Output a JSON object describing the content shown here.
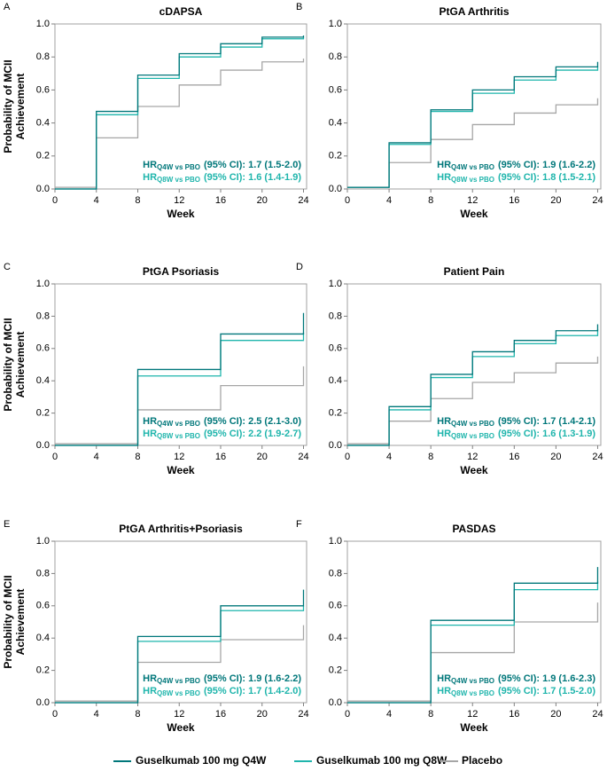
{
  "chart_data": [
    {
      "type": "step",
      "panel": "A",
      "title": "cDAPSA",
      "xlabel": "Week",
      "ylabel": [
        "Probability of MCII",
        "Achievement"
      ],
      "x": [
        0,
        4,
        8,
        12,
        16,
        20,
        24
      ],
      "series": [
        {
          "name": "Guselkumab 100 mg Q4W",
          "color": "#00777a",
          "values": [
            0,
            0.47,
            0.69,
            0.82,
            0.88,
            0.92,
            0.93
          ]
        },
        {
          "name": "Guselkumab 100 mg Q8W",
          "color": "#1fb5ac",
          "values": [
            0,
            0.45,
            0.67,
            0.8,
            0.86,
            0.91,
            0.92
          ]
        },
        {
          "name": "Placebo",
          "color": "#a6a6a6",
          "values": [
            0.01,
            0.31,
            0.5,
            0.63,
            0.72,
            0.77,
            0.79
          ]
        }
      ],
      "xlim": [
        0,
        24.3
      ],
      "ylim": [
        0,
        1
      ],
      "xticks": [
        0,
        4,
        8,
        12,
        16,
        20,
        24
      ],
      "yticks": [
        {
          "value": 0,
          "label": "0.0"
        },
        0.2,
        0.4,
        0.6,
        0.8,
        {
          "value": 1,
          "label": "1.0"
        }
      ],
      "annotations": [
        {
          "prefix": "HR",
          "sub": "Q4W vs PBO",
          "text": "(95% CI): 1.7 (1.5-2.0)",
          "color": "#00777a"
        },
        {
          "prefix": "HR",
          "sub": "Q8W vs PBO",
          "text": "(95% CI): 1.6 (1.4-1.9)",
          "color": "#1fb5ac"
        }
      ]
    },
    {
      "type": "step",
      "panel": "B",
      "title": "PtGA Arthritis",
      "xlabel": "Week",
      "x": [
        0,
        4,
        8,
        12,
        16,
        20,
        24
      ],
      "series": [
        {
          "name": "Guselkumab 100 mg Q4W",
          "color": "#00777a",
          "values": [
            0.01,
            0.28,
            0.48,
            0.6,
            0.68,
            0.74,
            0.77
          ]
        },
        {
          "name": "Guselkumab 100 mg Q8W",
          "color": "#1fb5ac",
          "values": [
            0.01,
            0.27,
            0.47,
            0.58,
            0.66,
            0.72,
            0.74
          ]
        },
        {
          "name": "Placebo",
          "color": "#a6a6a6",
          "values": [
            0.01,
            0.16,
            0.3,
            0.39,
            0.46,
            0.51,
            0.55
          ]
        }
      ],
      "xlim": [
        0,
        24.3
      ],
      "ylim": [
        0,
        1
      ],
      "xticks": [
        0,
        4,
        8,
        12,
        16,
        20,
        24
      ],
      "yticks": [
        {
          "value": 0,
          "label": "0.0"
        },
        0.2,
        0.4,
        0.6,
        0.8,
        {
          "value": 1,
          "label": "1.0"
        }
      ],
      "annotations": [
        {
          "prefix": "HR",
          "sub": "Q4W vs PBO",
          "text": "(95% CI): 1.9 (1.6-2.2)",
          "color": "#00777a"
        },
        {
          "prefix": "HR",
          "sub": "Q8W vs PBO",
          "text": "(95% CI): 1.8 (1.5-2.1)",
          "color": "#1fb5ac"
        }
      ]
    },
    {
      "type": "step",
      "panel": "C",
      "title": "PtGA Psoriasis",
      "xlabel": "Week",
      "ylabel": [
        "Probability of MCII",
        "Achievement"
      ],
      "x": [
        0,
        8,
        16,
        24
      ],
      "series": [
        {
          "name": "Guselkumab 100 mg Q4W",
          "color": "#00777a",
          "values": [
            0,
            0.47,
            0.69,
            0.82
          ]
        },
        {
          "name": "Guselkumab 100 mg Q8W",
          "color": "#1fb5ac",
          "values": [
            0,
            0.43,
            0.65,
            0.7
          ]
        },
        {
          "name": "Placebo",
          "color": "#a6a6a6",
          "values": [
            0.01,
            0.22,
            0.37,
            0.49
          ]
        }
      ],
      "xlim": [
        0,
        24.3
      ],
      "ylim": [
        0,
        1
      ],
      "xticks": [
        0,
        4,
        8,
        12,
        16,
        20,
        24
      ],
      "yticks": [
        {
          "value": 0,
          "label": "0.0"
        },
        0.2,
        0.4,
        0.6,
        0.8,
        {
          "value": 1,
          "label": "1.0"
        }
      ],
      "annotations": [
        {
          "prefix": "HR",
          "sub": "Q4W vs PBO",
          "text": "(95% CI): 2.5 (2.1-3.0)",
          "color": "#00777a"
        },
        {
          "prefix": "HR",
          "sub": "Q8W vs PBO",
          "text": "(95% CI): 2.2 (1.9-2.7)",
          "color": "#1fb5ac"
        }
      ]
    },
    {
      "type": "step",
      "panel": "D",
      "title": "Patient Pain",
      "xlabel": "Week",
      "x": [
        0,
        4,
        8,
        12,
        16,
        20,
        24
      ],
      "series": [
        {
          "name": "Guselkumab 100 mg Q4W",
          "color": "#00777a",
          "values": [
            0,
            0.24,
            0.44,
            0.58,
            0.65,
            0.71,
            0.75
          ]
        },
        {
          "name": "Guselkumab 100 mg Q8W",
          "color": "#1fb5ac",
          "values": [
            0,
            0.22,
            0.42,
            0.55,
            0.63,
            0.68,
            0.72
          ]
        },
        {
          "name": "Placebo",
          "color": "#a6a6a6",
          "values": [
            0.01,
            0.15,
            0.29,
            0.39,
            0.45,
            0.51,
            0.55
          ]
        }
      ],
      "xlim": [
        0,
        24.3
      ],
      "ylim": [
        0,
        1
      ],
      "xticks": [
        0,
        4,
        8,
        12,
        16,
        20,
        24
      ],
      "yticks": [
        {
          "value": 0,
          "label": "0.0"
        },
        0.2,
        0.4,
        0.6,
        0.8,
        {
          "value": 1,
          "label": "1.0"
        }
      ],
      "annotations": [
        {
          "prefix": "HR",
          "sub": "Q4W vs PBO",
          "text": "(95% CI): 1.7 (1.4-2.1)",
          "color": "#00777a"
        },
        {
          "prefix": "HR",
          "sub": "Q8W vs PBO",
          "text": "(95% CI): 1.6 (1.3-1.9)",
          "color": "#1fb5ac"
        }
      ]
    },
    {
      "type": "step",
      "panel": "E",
      "title": "PtGA Arthritis+Psoriasis",
      "xlabel": "Week",
      "ylabel": [
        "Probability of MCII",
        "Achievement"
      ],
      "x": [
        0,
        8,
        16,
        24
      ],
      "series": [
        {
          "name": "Guselkumab 100 mg Q4W",
          "color": "#00777a",
          "values": [
            0,
            0.41,
            0.6,
            0.7
          ]
        },
        {
          "name": "Guselkumab 100 mg Q8W",
          "color": "#1fb5ac",
          "values": [
            0,
            0.38,
            0.57,
            0.6
          ]
        },
        {
          "name": "Placebo",
          "color": "#a6a6a6",
          "values": [
            0.01,
            0.25,
            0.39,
            0.48
          ]
        }
      ],
      "xlim": [
        0,
        24.3
      ],
      "ylim": [
        0,
        1
      ],
      "xticks": [
        0,
        4,
        8,
        12,
        16,
        20,
        24
      ],
      "yticks": [
        {
          "value": 0,
          "label": "0.0"
        },
        0.2,
        0.4,
        0.6,
        0.8,
        {
          "value": 1,
          "label": "1.0"
        }
      ],
      "annotations": [
        {
          "prefix": "HR",
          "sub": "Q4W vs PBO",
          "text": "(95% CI): 1.9 (1.6-2.2)",
          "color": "#00777a"
        },
        {
          "prefix": "HR",
          "sub": "Q8W vs PBO",
          "text": "(95% CI): 1.7 (1.4-2.0)",
          "color": "#1fb5ac"
        }
      ]
    },
    {
      "type": "step",
      "panel": "F",
      "title": "PASDAS",
      "xlabel": "Week",
      "x": [
        0,
        8,
        16,
        24
      ],
      "series": [
        {
          "name": "Guselkumab 100 mg Q4W",
          "color": "#00777a",
          "values": [
            0,
            0.51,
            0.74,
            0.84
          ]
        },
        {
          "name": "Guselkumab 100 mg Q8W",
          "color": "#1fb5ac",
          "values": [
            0,
            0.48,
            0.7,
            0.75
          ]
        },
        {
          "name": "Placebo",
          "color": "#a6a6a6",
          "values": [
            0.01,
            0.31,
            0.5,
            0.62
          ]
        }
      ],
      "xlim": [
        0,
        24.3
      ],
      "ylim": [
        0,
        1
      ],
      "xticks": [
        0,
        4,
        8,
        12,
        16,
        20,
        24
      ],
      "yticks": [
        {
          "value": 0,
          "label": "0.0"
        },
        0.2,
        0.4,
        0.6,
        0.8,
        {
          "value": 1,
          "label": "1.0"
        }
      ],
      "annotations": [
        {
          "prefix": "HR",
          "sub": "Q4W vs PBO",
          "text": "(95% CI): 1.9 (1.6-2.3)",
          "color": "#00777a"
        },
        {
          "prefix": "HR",
          "sub": "Q8W vs PBO",
          "text": "(95% CI): 1.7 (1.5-2.0)",
          "color": "#1fb5ac"
        }
      ]
    }
  ]
}
